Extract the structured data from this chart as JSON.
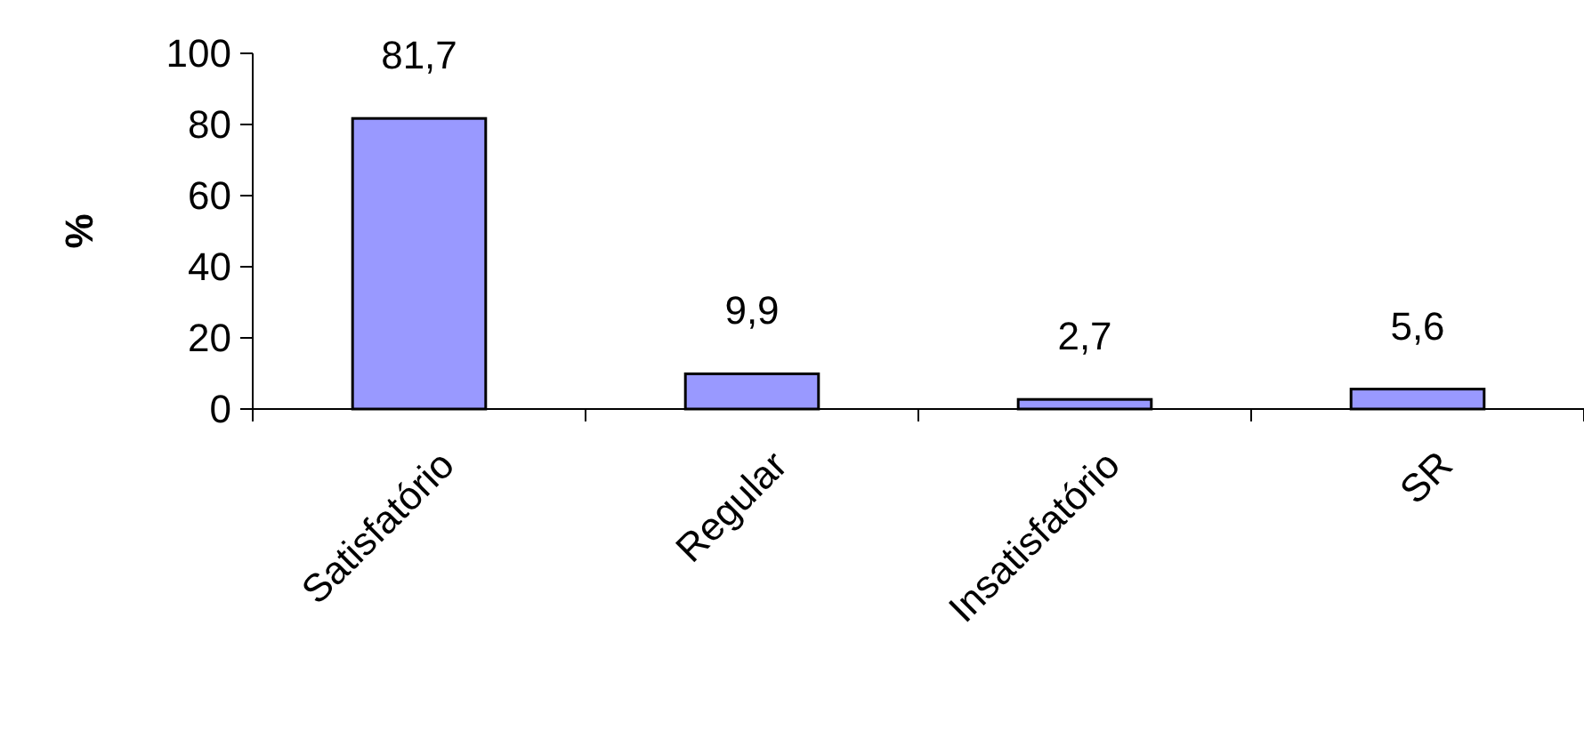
{
  "chart_data": {
    "type": "bar",
    "ylabel": "%",
    "categories": [
      "Satisfatório",
      "Regular",
      "Insatisfatório",
      "SR"
    ],
    "values": [
      81.7,
      9.9,
      2.7,
      5.6
    ],
    "value_labels": [
      "81,7",
      "9,9",
      "2,7",
      "5,6"
    ],
    "color": "#9999ff",
    "ylim": [
      0,
      100
    ],
    "yticks": [
      0,
      20,
      40,
      60,
      80,
      100
    ],
    "grid": false
  }
}
